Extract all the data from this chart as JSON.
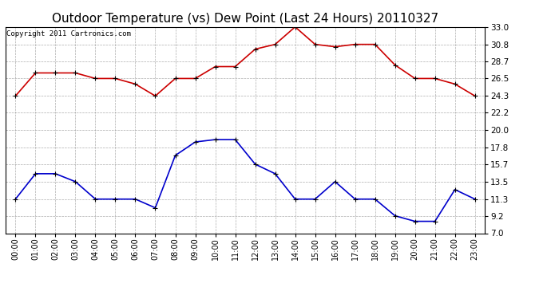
{
  "title": "Outdoor Temperature (vs) Dew Point (Last 24 Hours) 20110327",
  "copyright": "Copyright 2011 Cartronics.com",
  "x_labels": [
    "00:00",
    "01:00",
    "02:00",
    "03:00",
    "04:00",
    "05:00",
    "06:00",
    "07:00",
    "08:00",
    "09:00",
    "10:00",
    "11:00",
    "12:00",
    "13:00",
    "14:00",
    "15:00",
    "16:00",
    "17:00",
    "18:00",
    "19:00",
    "20:00",
    "21:00",
    "22:00",
    "23:00"
  ],
  "temp_data": [
    24.3,
    27.2,
    27.2,
    27.2,
    26.5,
    26.5,
    25.8,
    24.3,
    26.5,
    26.5,
    28.0,
    28.0,
    30.2,
    30.8,
    33.0,
    30.8,
    30.5,
    30.8,
    30.8,
    28.2,
    26.5,
    26.5,
    25.8,
    24.3
  ],
  "dew_data": [
    11.3,
    14.5,
    14.5,
    13.5,
    11.3,
    11.3,
    11.3,
    10.2,
    16.8,
    18.5,
    18.8,
    18.8,
    15.7,
    14.5,
    11.3,
    11.3,
    13.5,
    11.3,
    11.3,
    9.2,
    8.5,
    8.5,
    12.5,
    11.3
  ],
  "y_ticks": [
    7.0,
    9.2,
    11.3,
    13.5,
    15.7,
    17.8,
    20.0,
    22.2,
    24.3,
    26.5,
    28.7,
    30.8,
    33.0
  ],
  "y_min": 7.0,
  "y_max": 33.0,
  "temp_color": "#cc0000",
  "dew_color": "#0000cc",
  "bg_color": "#ffffff",
  "grid_color": "#999999",
  "title_fontsize": 11,
  "copyright_fontsize": 6.5,
  "marker_size": 3.5,
  "line_width": 1.2
}
